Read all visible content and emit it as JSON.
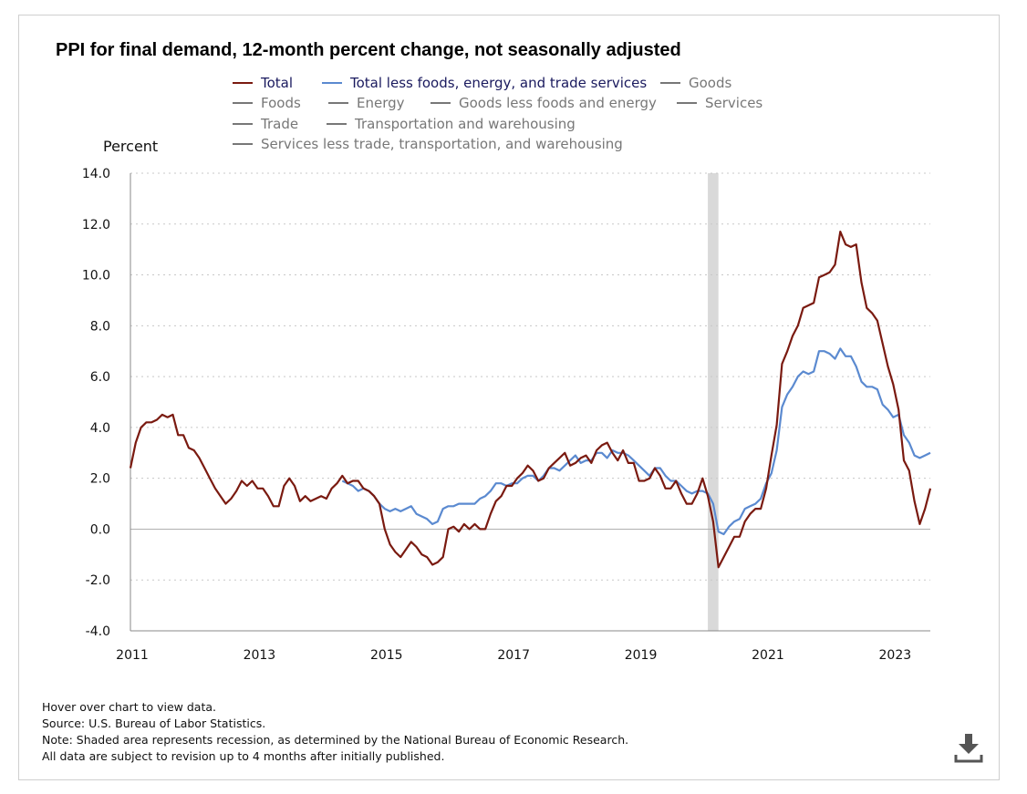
{
  "title": "PPI for final demand, 12-month percent change, not seasonally adjusted",
  "legend": [
    {
      "label": "Total",
      "color": "#7a1a10",
      "active": true
    },
    {
      "label": "Total less foods, energy, and trade services",
      "color": "#5b8ad0",
      "active": true
    },
    {
      "label": "Goods",
      "color": "#777777",
      "active": false
    },
    {
      "label": "Foods",
      "color": "#777777",
      "active": false
    },
    {
      "label": "Energy",
      "color": "#777777",
      "active": false
    },
    {
      "label": "Goods less foods and energy",
      "color": "#777777",
      "active": false
    },
    {
      "label": "Services",
      "color": "#777777",
      "active": false
    },
    {
      "label": "Trade",
      "color": "#777777",
      "active": false
    },
    {
      "label": "Transportation and warehousing",
      "color": "#777777",
      "active": false
    },
    {
      "label": "Services less trade, transportation, and warehousing",
      "color": "#777777",
      "active": false
    }
  ],
  "notes": {
    "hover": "Hover over chart to view data.",
    "source": "Source: U.S. Bureau of Labor Statistics.",
    "recession": "Note: Shaded area represents recession, as determined by the National Bureau of Economic Research.",
    "revision": "All data are subject to revision up to 4 months after initially published."
  },
  "download_icon": "download-icon",
  "chart_data": {
    "type": "line",
    "title": "PPI for final demand, 12-month percent change, not seasonally adjusted",
    "ylabel": "Percent",
    "xlabel": "",
    "ylim": [
      -4.0,
      14.0
    ],
    "y_ticks": [
      "14.0",
      "12.0",
      "10.0",
      "8.0",
      "6.0",
      "4.0",
      "2.0",
      "0.0",
      "-2.0",
      "-4.0"
    ],
    "x_ticks": [
      "2011",
      "2013",
      "2015",
      "2017",
      "2019",
      "2021",
      "2023"
    ],
    "x_range": [
      "2011-01",
      "2023-08"
    ],
    "grid": "horizontal dotted",
    "recession_shading": {
      "from": "2020-02",
      "to": "2020-04"
    },
    "series": [
      {
        "name": "Total",
        "color": "#7a1a10",
        "x_start": "2011-01",
        "values": [
          2.4,
          3.4,
          4.0,
          4.2,
          4.2,
          4.3,
          4.5,
          4.4,
          4.5,
          3.7,
          3.7,
          3.2,
          3.1,
          2.8,
          2.4,
          2.0,
          1.6,
          1.3,
          1.0,
          1.2,
          1.5,
          1.9,
          1.7,
          1.9,
          1.6,
          1.6,
          1.3,
          0.9,
          0.9,
          1.7,
          2.0,
          1.7,
          1.1,
          1.3,
          1.1,
          1.2,
          1.3,
          1.2,
          1.6,
          1.8,
          2.1,
          1.8,
          1.9,
          1.9,
          1.6,
          1.5,
          1.3,
          1.0,
          0.0,
          -0.6,
          -0.9,
          -1.1,
          -0.8,
          -0.5,
          -0.7,
          -1.0,
          -1.1,
          -1.4,
          -1.3,
          -1.1,
          0.0,
          0.1,
          -0.1,
          0.2,
          0.0,
          0.2,
          0.0,
          0.0,
          0.6,
          1.1,
          1.3,
          1.7,
          1.7,
          2.0,
          2.2,
          2.5,
          2.3,
          1.9,
          2.0,
          2.4,
          2.6,
          2.8,
          3.0,
          2.5,
          2.6,
          2.8,
          2.9,
          2.6,
          3.1,
          3.3,
          3.4,
          3.0,
          2.7,
          3.1,
          2.6,
          2.6,
          1.9,
          1.9,
          2.0,
          2.4,
          2.1,
          1.6,
          1.6,
          1.9,
          1.4,
          1.0,
          1.0,
          1.4,
          2.0,
          1.3,
          0.3,
          -1.5,
          -1.1,
          -0.7,
          -0.3,
          -0.3,
          0.3,
          0.6,
          0.8,
          0.8,
          1.6,
          2.9,
          4.1,
          6.5,
          7.0,
          7.6,
          8.0,
          8.7,
          8.8,
          8.9,
          9.9,
          10.0,
          10.1,
          10.4,
          11.7,
          11.2,
          11.1,
          11.2,
          9.7,
          8.7,
          8.5,
          8.2,
          7.3,
          6.4,
          5.7,
          4.7,
          2.7,
          2.3,
          1.1,
          0.2,
          0.8,
          1.6
        ]
      },
      {
        "name": "Total less foods, energy, and trade services",
        "color": "#5b8ad0",
        "x_start": "2014-05",
        "values": [
          1.9,
          1.8,
          1.7,
          1.5,
          1.6,
          1.5,
          1.3,
          1.0,
          0.8,
          0.7,
          0.8,
          0.7,
          0.8,
          0.9,
          0.6,
          0.5,
          0.4,
          0.2,
          0.3,
          0.8,
          0.9,
          0.9,
          1.0,
          1.0,
          1.0,
          1.0,
          1.2,
          1.3,
          1.5,
          1.8,
          1.8,
          1.7,
          1.8,
          1.8,
          2.0,
          2.1,
          2.1,
          1.9,
          2.1,
          2.4,
          2.4,
          2.3,
          2.5,
          2.7,
          2.9,
          2.6,
          2.7,
          2.7,
          3.0,
          3.0,
          2.8,
          3.1,
          3.0,
          3.0,
          2.9,
          2.7,
          2.5,
          2.3,
          2.1,
          2.4,
          2.4,
          2.1,
          1.9,
          1.9,
          1.7,
          1.5,
          1.4,
          1.5,
          1.5,
          1.4,
          1.0,
          -0.1,
          -0.2,
          0.1,
          0.3,
          0.4,
          0.8,
          0.9,
          1.0,
          1.2,
          1.8,
          2.2,
          3.1,
          4.8,
          5.3,
          5.6,
          6.0,
          6.2,
          6.1,
          6.2,
          7.0,
          7.0,
          6.9,
          6.7,
          7.1,
          6.8,
          6.8,
          6.4,
          5.8,
          5.6,
          5.6,
          5.5,
          4.9,
          4.7,
          4.4,
          4.5,
          3.7,
          3.4,
          2.9,
          2.8,
          2.9,
          3.0
        ]
      }
    ]
  }
}
